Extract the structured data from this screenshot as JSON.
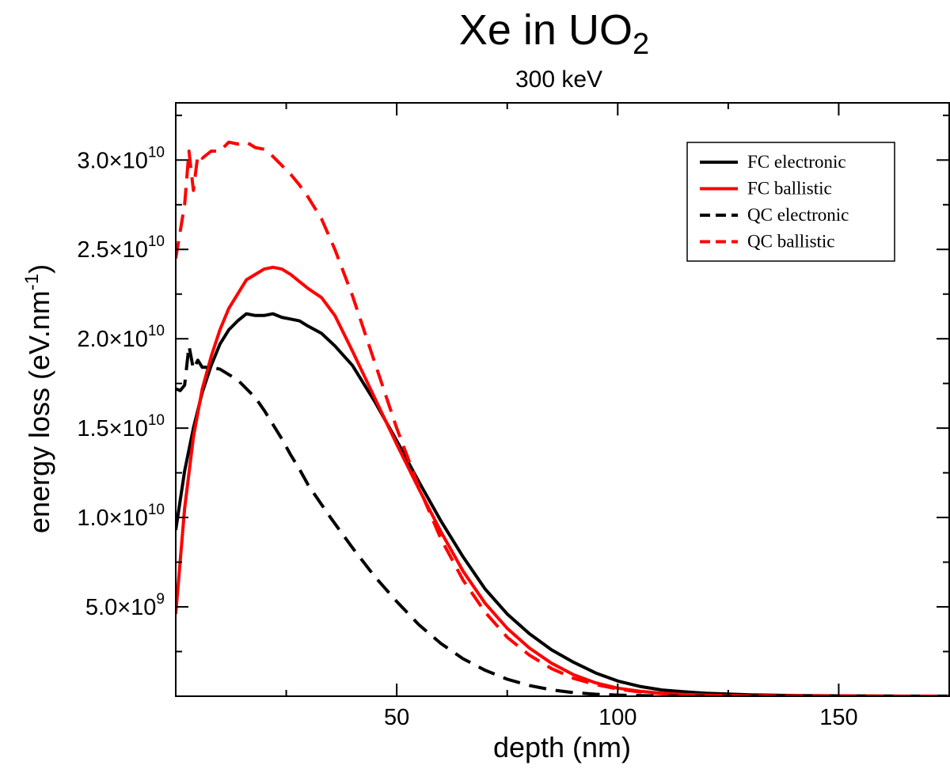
{
  "chart_data": {
    "type": "line",
    "title": "Xe in UO",
    "title_subscript": "2",
    "subtitle": "300 keV",
    "xlabel": "depth (nm)",
    "ylabel_main": "energy loss (eV.nm",
    "ylabel_sup": "-1",
    "ylabel_close": ")",
    "xlim": [
      0,
      175
    ],
    "ylim": [
      0,
      33200000000.0
    ],
    "x_ticks": [
      50,
      100,
      150
    ],
    "x_tick_labels": [
      "50",
      "100",
      "150"
    ],
    "x_minor_ticks": [
      25,
      75,
      125
    ],
    "y_ticks": [
      5000000000.0,
      10000000000.0,
      15000000000.0,
      20000000000.0,
      25000000000.0,
      30000000000.0
    ],
    "y_tick_mantissa": [
      "5.0",
      "1.0",
      "1.5",
      "2.0",
      "2.5",
      "3.0"
    ],
    "y_tick_exponent": [
      "9",
      "10",
      "10",
      "10",
      "10",
      "10"
    ],
    "y_minor_ticks": [
      2500000000.0,
      7500000000.0,
      12500000000.0,
      17500000000.0,
      22500000000.0,
      27500000000.0,
      32500000000.0
    ],
    "grid": false,
    "legend_position": "top-right",
    "series": [
      {
        "name": "FC electronic",
        "color": "#000000",
        "dash": "solid",
        "x": [
          0,
          2,
          4,
          6,
          8,
          10,
          12,
          14,
          16,
          18,
          20,
          22,
          24,
          26,
          28,
          30,
          33,
          36,
          40,
          45,
          50,
          55,
          60,
          65,
          70,
          75,
          80,
          85,
          90,
          95,
          100,
          105,
          110,
          115,
          120,
          125,
          130,
          140,
          150,
          160,
          170,
          175
        ],
        "y": [
          9300000000.0,
          12600000000.0,
          15000000000.0,
          17000000000.0,
          18500000000.0,
          19700000000.0,
          20500000000.0,
          21000000000.0,
          21400000000.0,
          21300000000.0,
          21300000000.0,
          21400000000.0,
          21200000000.0,
          21100000000.0,
          21000000000.0,
          20700000000.0,
          20300000000.0,
          19600000000.0,
          18500000000.0,
          16500000000.0,
          14300000000.0,
          12000000000.0,
          9800000000.0,
          7800000000.0,
          6000000000.0,
          4600000000.0,
          3500000000.0,
          2600000000.0,
          1900000000.0,
          1300000000.0,
          850000000.0,
          550000000.0,
          350000000.0,
          250000000.0,
          170000000.0,
          120000000.0,
          80000000.0,
          40000000.0,
          20000000.0,
          10000000.0,
          5000000.0,
          3000000.0
        ]
      },
      {
        "name": "FC ballistic",
        "color": "#ff0000",
        "dash": "solid",
        "x": [
          0,
          2,
          4,
          6,
          8,
          10,
          12,
          14,
          16,
          18,
          20,
          22,
          24,
          26,
          28,
          30,
          33,
          36,
          40,
          45,
          50,
          55,
          60,
          65,
          70,
          75,
          80,
          85,
          90,
          95,
          100,
          105,
          110,
          115,
          120,
          125,
          130,
          140,
          150,
          160,
          170,
          175
        ],
        "y": [
          4600000000.0,
          10500000000.0,
          14500000000.0,
          17200000000.0,
          19000000000.0,
          20500000000.0,
          21700000000.0,
          22500000000.0,
          23300000000.0,
          23600000000.0,
          23900000000.0,
          24000000000.0,
          23900000000.0,
          23600000000.0,
          23200000000.0,
          22800000000.0,
          22300000000.0,
          21300000000.0,
          19300000000.0,
          16700000000.0,
          14100000000.0,
          11600000000.0,
          9200000000.0,
          7000000000.0,
          5200000000.0,
          3800000000.0,
          2700000000.0,
          1850000000.0,
          1200000000.0,
          750000000.0,
          450000000.0,
          280000000.0,
          170000000.0,
          100000000.0,
          60000000.0,
          35000000.0,
          20000000.0,
          10000000.0,
          5000000.0,
          3000000.0,
          2000000.0,
          1000000.0
        ]
      },
      {
        "name": "QC electronic",
        "color": "#000000",
        "dash": "dashed",
        "x": [
          0,
          1,
          2,
          3,
          4,
          5,
          6,
          8,
          10,
          12,
          14,
          16,
          18,
          20,
          22,
          24,
          26,
          28,
          30,
          35,
          40,
          45,
          50,
          55,
          60,
          65,
          70,
          75,
          80,
          85,
          90,
          95,
          100,
          105,
          110,
          115,
          120,
          125,
          130,
          140,
          150,
          160,
          170,
          175
        ],
        "y": [
          17200000000.0,
          17100000000.0,
          17400000000.0,
          19600000000.0,
          18300000000.0,
          18800000000.0,
          18400000000.0,
          18400000000.0,
          18300000000.0,
          18000000000.0,
          17700000000.0,
          17200000000.0,
          16700000000.0,
          16000000000.0,
          15200000000.0,
          14400000000.0,
          13500000000.0,
          12700000000.0,
          11800000000.0,
          10000000000.0,
          8300000000.0,
          6700000000.0,
          5300000000.0,
          4000000000.0,
          2950000000.0,
          2100000000.0,
          1450000000.0,
          950000000.0,
          600000000.0,
          360000000.0,
          200000000.0,
          110000000.0,
          60000000.0,
          30000000.0,
          15000000.0,
          8000000.0,
          4000000.0,
          2000000.0,
          1000000.0,
          500000.0,
          200000.0,
          100000.0,
          50000.0,
          20000.0
        ]
      },
      {
        "name": "QC ballistic",
        "color": "#ff0000",
        "dash": "dashed",
        "x": [
          0,
          2,
          3,
          4,
          5,
          6,
          8,
          10,
          12,
          14,
          16,
          18,
          20,
          22,
          24,
          26,
          28,
          30,
          33,
          36,
          40,
          45,
          50,
          55,
          60,
          65,
          70,
          75,
          80,
          85,
          90,
          95,
          100,
          105,
          110,
          115,
          120,
          125,
          130,
          140,
          150,
          160,
          170,
          175
        ],
        "y": [
          24500000000.0,
          27500000000.0,
          30500000000.0,
          28300000000.0,
          30300000000.0,
          30100000000.0,
          30500000000.0,
          30500000000.0,
          31000000000.0,
          30900000000.0,
          31000000000.0,
          30700000000.0,
          30600000000.0,
          30200000000.0,
          29700000000.0,
          29200000000.0,
          28600000000.0,
          27900000000.0,
          26700000000.0,
          25000000000.0,
          22400000000.0,
          18700000000.0,
          15000000000.0,
          11700000000.0,
          8800000000.0,
          6500000000.0,
          4700000000.0,
          3300000000.0,
          2300000000.0,
          1550000000.0,
          1000000000.0,
          650000000.0,
          400000000.0,
          240000000.0,
          140000000.0,
          80000000.0,
          45000000.0,
          25000000.0,
          15000000.0,
          7000000.0,
          3000000.0,
          1500000.0,
          700000.0,
          500000.0
        ]
      }
    ]
  }
}
